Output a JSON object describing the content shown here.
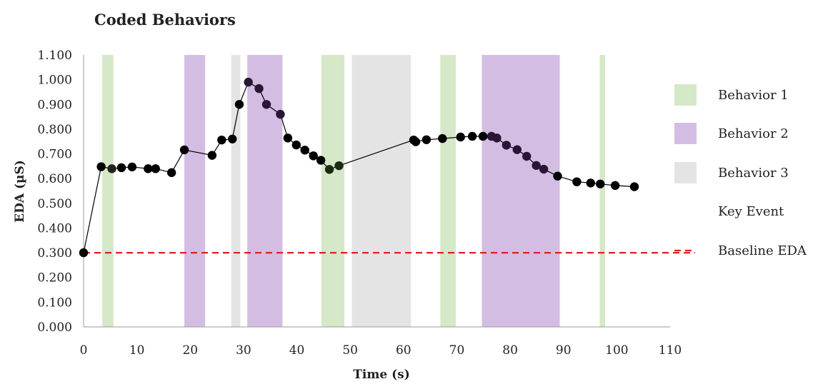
{
  "chart_data": {
    "type": "scatter",
    "title": "Coded Behaviors",
    "xlabel": "Time (s)",
    "ylabel": "EDA (µS)",
    "xlim": [
      0,
      110
    ],
    "ylim": [
      0,
      1.1
    ],
    "x_ticks": [
      "0",
      "10",
      "20",
      "30",
      "40",
      "50",
      "60",
      "70",
      "80",
      "90",
      "100",
      "110"
    ],
    "y_ticks": [
      "0.000",
      "0.100",
      "0.200",
      "0.300",
      "0.400",
      "0.500",
      "0.600",
      "0.700",
      "0.800",
      "0.900",
      "1.000",
      "1.100"
    ],
    "grid": false,
    "legend_position": "right",
    "legend": [
      {
        "label": "Behavior 1",
        "color": "#d5e8c8"
      },
      {
        "label": "Behavior 2",
        "color": "#d4bde3"
      },
      {
        "label": "Behavior 3",
        "color": "#e4e4e4"
      },
      {
        "label": "Key Event",
        "color": ""
      },
      {
        "label": "Baseline EDA",
        "color": "#e02020"
      }
    ],
    "behavior_bands": [
      {
        "behavior": "Behavior 1",
        "x_start": 3.5,
        "x_end": 5.6
      },
      {
        "behavior": "Behavior 2",
        "x_start": 18.9,
        "x_end": 22.8
      },
      {
        "behavior": "Behavior 3",
        "x_start": 27.7,
        "x_end": 29.4
      },
      {
        "behavior": "Behavior 2",
        "x_start": 30.7,
        "x_end": 37.3
      },
      {
        "behavior": "Behavior 1",
        "x_start": 44.6,
        "x_end": 48.9
      },
      {
        "behavior": "Behavior 3",
        "x_start": 50.3,
        "x_end": 61.4
      },
      {
        "behavior": "Behavior 1",
        "x_start": 66.9,
        "x_end": 69.8
      },
      {
        "behavior": "Behavior 2",
        "x_start": 74.7,
        "x_end": 89.3
      },
      {
        "behavior": "Behavior 1",
        "x_start": 96.8,
        "x_end": 97.8
      }
    ],
    "baseline": {
      "y": 0.3,
      "color": "#e02020"
    },
    "series": [
      {
        "x": [
          0,
          3.3,
          5.3,
          7.1,
          9.1,
          12.1,
          13.5,
          16.5,
          18.9,
          24.1,
          25.9,
          27.9,
          29.2,
          30.9,
          32.9,
          34.3,
          36.9,
          38.3,
          39.9,
          41.5,
          43.1,
          44.5,
          46.1,
          47.9,
          61.9,
          62.3,
          64.3,
          67.3,
          70.7,
          72.9,
          74.9,
          76.5,
          77.5,
          79.3,
          81.3,
          83.1,
          84.9,
          86.3,
          88.9,
          92.5,
          95.1,
          96.9,
          99.7,
          103.3
        ],
        "y": [
          0.3,
          0.648,
          0.64,
          0.644,
          0.647,
          0.64,
          0.64,
          0.624,
          0.716,
          0.694,
          0.756,
          0.76,
          0.9,
          0.99,
          0.964,
          0.9,
          0.86,
          0.764,
          0.736,
          0.715,
          0.692,
          0.674,
          0.637,
          0.652,
          0.756,
          0.749,
          0.757,
          0.762,
          0.768,
          0.771,
          0.771,
          0.771,
          0.764,
          0.735,
          0.717,
          0.69,
          0.653,
          0.638,
          0.61,
          0.587,
          0.582,
          0.578,
          0.572,
          0.567
        ],
        "marker_colors": [
          "#000000",
          "#000000",
          "#222222",
          "#000000",
          "#000000",
          "#000000",
          "#000000",
          "#000000",
          "#000000",
          "#000000",
          "#000000",
          "#000000",
          "#000000",
          "#2a1535",
          "#2a1535",
          "#2a1535",
          "#2a1535",
          "#000000",
          "#000000",
          "#000000",
          "#000000",
          "#000000",
          "#1c2a14",
          "#1c2a14",
          "#000000",
          "#000000",
          "#000000",
          "#000000",
          "#000000",
          "#000000",
          "#000000",
          "#2a1535",
          "#2a1535",
          "#2a1535",
          "#2a1535",
          "#2a1535",
          "#2a1535",
          "#2a1535",
          "#000000",
          "#000000",
          "#000000",
          "#000000",
          "#000000",
          "#000000"
        ]
      }
    ]
  }
}
